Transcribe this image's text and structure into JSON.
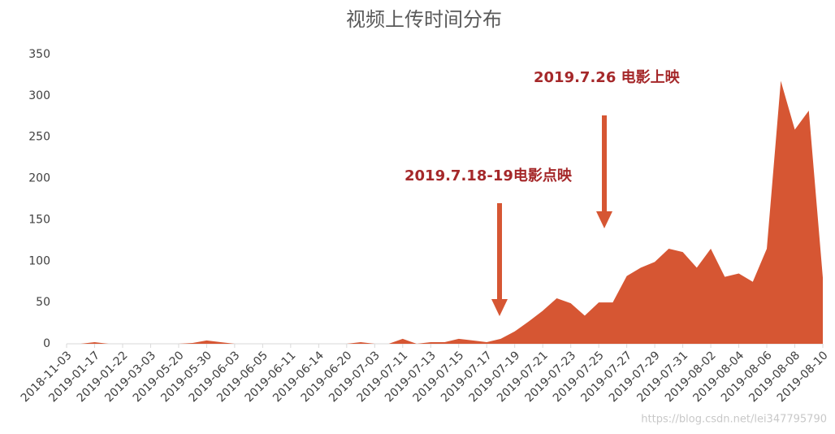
{
  "chart_data": {
    "type": "area",
    "title": "视频上传时间分布",
    "categories": [
      "2018-11-03",
      null,
      "2019-01-17",
      null,
      "2019-01-22",
      null,
      "2019-03-03",
      null,
      "2019-05-20",
      null,
      "2019-05-30",
      null,
      "2019-06-03",
      null,
      "2019-06-05",
      null,
      "2019-06-11",
      null,
      "2019-06-14",
      null,
      "2019-06-20",
      null,
      "2019-07-03",
      null,
      "2019-07-11",
      null,
      "2019-07-13",
      null,
      "2019-07-15",
      null,
      "2019-07-17",
      null,
      "2019-07-19",
      null,
      "2019-07-21",
      null,
      "2019-07-23",
      null,
      "2019-07-25",
      null,
      "2019-07-27",
      null,
      "2019-07-29",
      null,
      "2019-07-31",
      null,
      "2019-08-02",
      null,
      "2019-08-04",
      null,
      "2019-08-06",
      null,
      "2019-08-08",
      null,
      "2019-08-10"
    ],
    "values": [
      0,
      0,
      2,
      0,
      0,
      0,
      0,
      0,
      0,
      1,
      4,
      2,
      0,
      0,
      0,
      0,
      0,
      0,
      0,
      0,
      0,
      2,
      0,
      0,
      6,
      0,
      2,
      2,
      6,
      4,
      2,
      6,
      15,
      27,
      40,
      55,
      49,
      34,
      50,
      50,
      82,
      92,
      99,
      115,
      111,
      92,
      115,
      81,
      85,
      75,
      115,
      318,
      259,
      282,
      80
    ],
    "color": "#d65633",
    "ylim": [
      0,
      350
    ],
    "yticks": [
      0,
      50,
      100,
      150,
      200,
      250,
      300,
      350
    ],
    "annotations": [
      {
        "text": "2019.7.18-19电影点映"
      },
      {
        "text": "2019.7.26 电影上映"
      }
    ],
    "watermark": "https://blog.csdn.net/lei347795790"
  }
}
